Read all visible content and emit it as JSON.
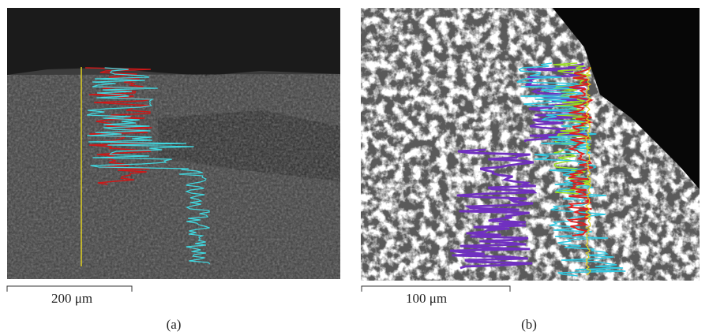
{
  "panels": [
    {
      "scale_bar": "200 μm",
      "caption": "(a)"
    },
    {
      "scale_bar": "100 μm",
      "caption": "(b)"
    }
  ]
}
